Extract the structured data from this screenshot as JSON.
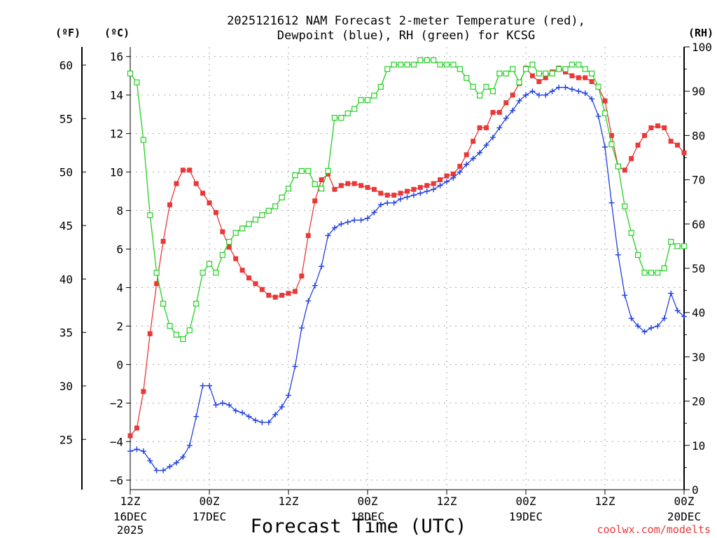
{
  "chart_data": {
    "type": "line",
    "title_line1": "2025121612 NAM Forecast 2-meter Temperature (red),",
    "title_line2": "Dewpoint (blue), RH (green) for KCSG",
    "xlabel": "Forecast Time (UTC)",
    "credit": "coolwx.com/modelts",
    "unit_f": "(ºF)",
    "unit_c": "(ºC)",
    "unit_rh": "(RH)",
    "x_range_hours": [
      0,
      84
    ],
    "y_left_range_c": [
      -6.5,
      16.5
    ],
    "y_right_range_rh": [
      0,
      100
    ],
    "c_ticks": [
      "16",
      "14",
      "12",
      "10",
      "8",
      "6",
      "4",
      "2",
      "0",
      "-2",
      "-4",
      "-6"
    ],
    "f_ticks": [
      "60",
      "55",
      "50",
      "45",
      "40",
      "35",
      "30",
      "25"
    ],
    "rh_ticks": [
      "100",
      "90",
      "80",
      "70",
      "60",
      "50",
      "40",
      "30",
      "20",
      "10",
      "0"
    ],
    "x_ticks": [
      {
        "hour": 0,
        "line1": "12Z",
        "line2": "16DEC",
        "line3": "2025"
      },
      {
        "hour": 12,
        "line1": "00Z",
        "line2": "17DEC",
        "line3": ""
      },
      {
        "hour": 24,
        "line1": "12Z",
        "line2": "",
        "line3": ""
      },
      {
        "hour": 36,
        "line1": "00Z",
        "line2": "18DEC",
        "line3": ""
      },
      {
        "hour": 48,
        "line1": "12Z",
        "line2": "",
        "line3": ""
      },
      {
        "hour": 60,
        "line1": "00Z",
        "line2": "19DEC",
        "line3": ""
      },
      {
        "hour": 72,
        "line1": "12Z",
        "line2": "",
        "line3": ""
      },
      {
        "hour": 84,
        "line1": "00Z",
        "line2": "20DEC",
        "line3": ""
      }
    ],
    "hours": [
      0,
      1,
      2,
      3,
      4,
      5,
      6,
      7,
      8,
      9,
      10,
      11,
      12,
      13,
      14,
      15,
      16,
      17,
      18,
      19,
      20,
      21,
      22,
      23,
      24,
      25,
      26,
      27,
      28,
      29,
      30,
      31,
      32,
      33,
      34,
      35,
      36,
      37,
      38,
      39,
      40,
      41,
      42,
      43,
      44,
      45,
      46,
      47,
      48,
      49,
      50,
      51,
      52,
      53,
      54,
      55,
      56,
      57,
      58,
      59,
      60,
      61,
      62,
      63,
      64,
      65,
      66,
      67,
      68,
      69,
      70,
      71,
      72,
      73,
      74,
      75,
      76,
      77,
      78,
      79,
      80,
      81,
      82,
      83,
      84
    ],
    "series": [
      {
        "name": "Temperature",
        "unit": "C",
        "color": "#e83838",
        "marker": "filled-square",
        "values": [
          -3.7,
          -3.3,
          -1.4,
          1.6,
          4.2,
          6.4,
          8.3,
          9.4,
          10.1,
          10.1,
          9.4,
          8.9,
          8.4,
          7.9,
          6.9,
          6.1,
          5.5,
          4.9,
          4.5,
          4.2,
          3.9,
          3.6,
          3.5,
          3.6,
          3.7,
          3.8,
          4.6,
          6.7,
          8.5,
          9.6,
          9.9,
          9.1,
          9.3,
          9.4,
          9.4,
          9.3,
          9.2,
          9.1,
          8.9,
          8.8,
          8.8,
          8.9,
          9.0,
          9.1,
          9.2,
          9.3,
          9.4,
          9.6,
          9.8,
          9.9,
          10.3,
          10.9,
          11.6,
          12.3,
          12.3,
          13.1,
          13.1,
          13.6,
          14.0,
          14.6,
          15.4,
          15.0,
          14.7,
          14.9,
          15.2,
          15.4,
          15.2,
          15.0,
          14.9,
          14.9,
          14.7,
          14.4,
          13.7,
          11.9,
          10.3,
          10.1,
          10.7,
          11.4,
          11.9,
          12.3,
          12.4,
          12.3,
          11.6,
          11.4,
          11.0
        ]
      },
      {
        "name": "Dewpoint",
        "unit": "C",
        "color": "#2040e0",
        "marker": "plus",
        "values": [
          -4.5,
          -4.4,
          -4.5,
          -5.0,
          -5.5,
          -5.5,
          -5.3,
          -5.1,
          -4.8,
          -4.2,
          -2.7,
          -1.1,
          -1.1,
          -2.1,
          -2.0,
          -2.1,
          -2.4,
          -2.5,
          -2.7,
          -2.9,
          -3.0,
          -3.0,
          -2.6,
          -2.2,
          -1.6,
          -0.1,
          1.9,
          3.3,
          4.1,
          5.1,
          6.7,
          7.1,
          7.3,
          7.4,
          7.5,
          7.5,
          7.6,
          7.9,
          8.3,
          8.4,
          8.4,
          8.6,
          8.7,
          8.8,
          8.9,
          9.0,
          9.1,
          9.3,
          9.5,
          9.7,
          10.0,
          10.4,
          10.7,
          11.0,
          11.4,
          11.8,
          12.3,
          12.8,
          13.2,
          13.7,
          14.0,
          14.2,
          14.0,
          14.0,
          14.2,
          14.4,
          14.4,
          14.3,
          14.2,
          14.1,
          13.8,
          12.9,
          11.3,
          8.4,
          5.7,
          3.6,
          2.4,
          2.0,
          1.7,
          1.9,
          2.0,
          2.4,
          3.7,
          2.8,
          2.5
        ]
      },
      {
        "name": "Relative Humidity",
        "unit": "%",
        "color": "#22d022",
        "marker": "hollow-square",
        "values": [
          94,
          92,
          79,
          62,
          49,
          42,
          37,
          35,
          34,
          36,
          42,
          49,
          51,
          49,
          53,
          56,
          58,
          59,
          60,
          61,
          62,
          63,
          64,
          66,
          68,
          71,
          72,
          72,
          69,
          68,
          72,
          84,
          84,
          85,
          86,
          88,
          88,
          89,
          91,
          95,
          96,
          96,
          96,
          96,
          97,
          97,
          97,
          96,
          96,
          96,
          95,
          93,
          91,
          89,
          91,
          90,
          94,
          94,
          95,
          92,
          95,
          96,
          94,
          94,
          94,
          95,
          95,
          96,
          96,
          95,
          94,
          91,
          85,
          78,
          73,
          64,
          58,
          53,
          49,
          49,
          49,
          50,
          56,
          55,
          55
        ]
      }
    ]
  }
}
